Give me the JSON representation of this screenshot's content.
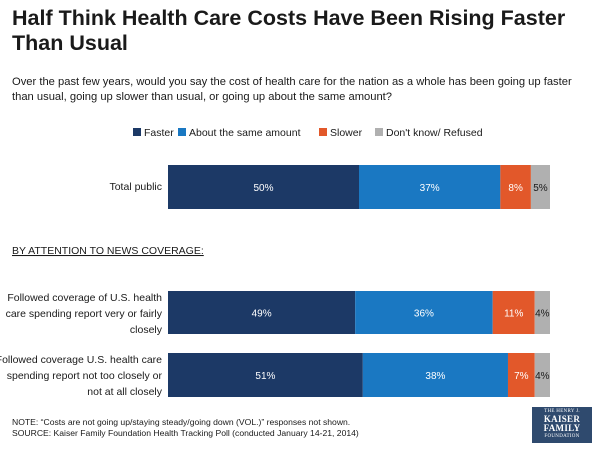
{
  "header": {
    "title": "Half Think Health Care Costs Have Been Rising Faster Than Usual",
    "subtitle": "Over the past few years, would you say the cost of health care for the nation as a whole has been going up faster than usual, going up slower than usual, or going up about the same amount?"
  },
  "chart_data": {
    "type": "bar",
    "orientation": "horizontal-stacked-100",
    "categories": [
      "Total public",
      "Followed coverage of U.S. health care spending report very or fairly closely",
      "Followed coverage U.S. health care spending report not too closely or not at all closely"
    ],
    "section_label": "BY ATTENTION TO NEWS COVERAGE:",
    "series": [
      {
        "name": "Faster",
        "values": [
          50,
          49,
          51
        ],
        "labels": [
          "50%",
          "49%",
          "51%"
        ],
        "color": "#1c3966",
        "label_color": "#ffffff"
      },
      {
        "name": "About the same amount",
        "values": [
          37,
          36,
          38
        ],
        "labels": [
          "37%",
          "36%",
          "38%"
        ],
        "color": "#1a78c2",
        "label_color": "#ffffff"
      },
      {
        "name": "Slower",
        "values": [
          8,
          11,
          7
        ],
        "labels": [
          "8%",
          "11%",
          "7%"
        ],
        "color": "#e2582a",
        "label_color": "#ffffff"
      },
      {
        "name": "Don't know/ Refused",
        "values": [
          5,
          4,
          4
        ],
        "labels": [
          "5%",
          "4%",
          "4%"
        ],
        "color": "#b0b0b0",
        "label_color": "#1a1a1a"
      }
    ],
    "legend": "top",
    "xlim": [
      0,
      100
    ]
  },
  "footer": {
    "note": "NOTE: “Costs are not going up/staying steady/going down (VOL.)” responses not shown.",
    "source": "SOURCE: Kaiser Family Foundation Health Tracking Poll (conducted January 14-21, 2014)"
  },
  "logo": {
    "top": "THE HENRY J.",
    "middle_1": "KAISER",
    "middle_2": "FAMILY",
    "bottom": "FOUNDATION"
  }
}
